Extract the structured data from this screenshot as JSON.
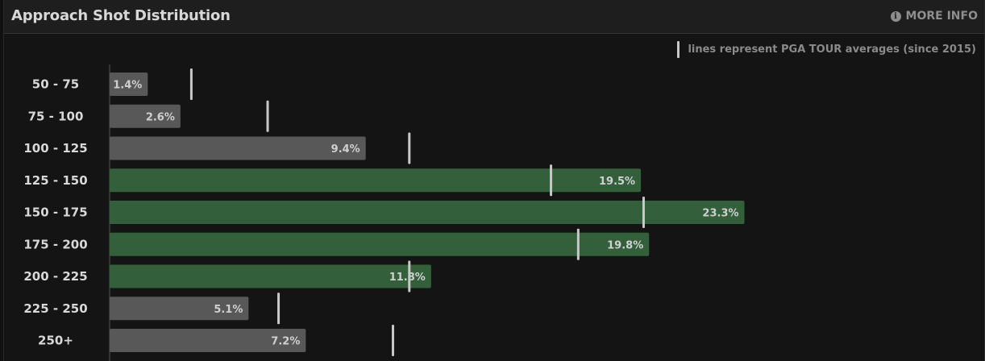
{
  "header": {
    "title": "Approach Shot Distribution",
    "more_info": "MORE INFO",
    "info_icon": "info-icon"
  },
  "legend": {
    "text": "lines represent PGA TOUR averages (since 2015)"
  },
  "colors": {
    "highlight": "#33603a",
    "normal": "#585858",
    "average_line": "#c8c8c8",
    "axis": "#555555"
  },
  "chart_data": {
    "type": "bar",
    "orientation": "horizontal",
    "title": "Approach Shot Distribution",
    "categories": [
      "50 - 75",
      "75 - 100",
      "100 - 125",
      "125 - 150",
      "150 - 175",
      "175 - 200",
      "200 - 225",
      "225 - 250",
      "250+"
    ],
    "values": [
      1.4,
      2.6,
      9.4,
      19.5,
      23.3,
      19.8,
      11.8,
      5.1,
      7.2
    ],
    "value_labels": [
      "1.4%",
      "2.6%",
      "9.4%",
      "19.5%",
      "23.3%",
      "19.8%",
      "11.8%",
      "5.1%",
      "7.2%"
    ],
    "highlighted": [
      false,
      false,
      false,
      true,
      true,
      true,
      true,
      false,
      false
    ],
    "pga_tour_average": [
      3.0,
      5.8,
      11.0,
      16.2,
      19.6,
      17.2,
      11.0,
      6.2,
      10.4
    ],
    "xlim": [
      0,
      29.5
    ],
    "grid": false,
    "legend_position": "top-right"
  }
}
